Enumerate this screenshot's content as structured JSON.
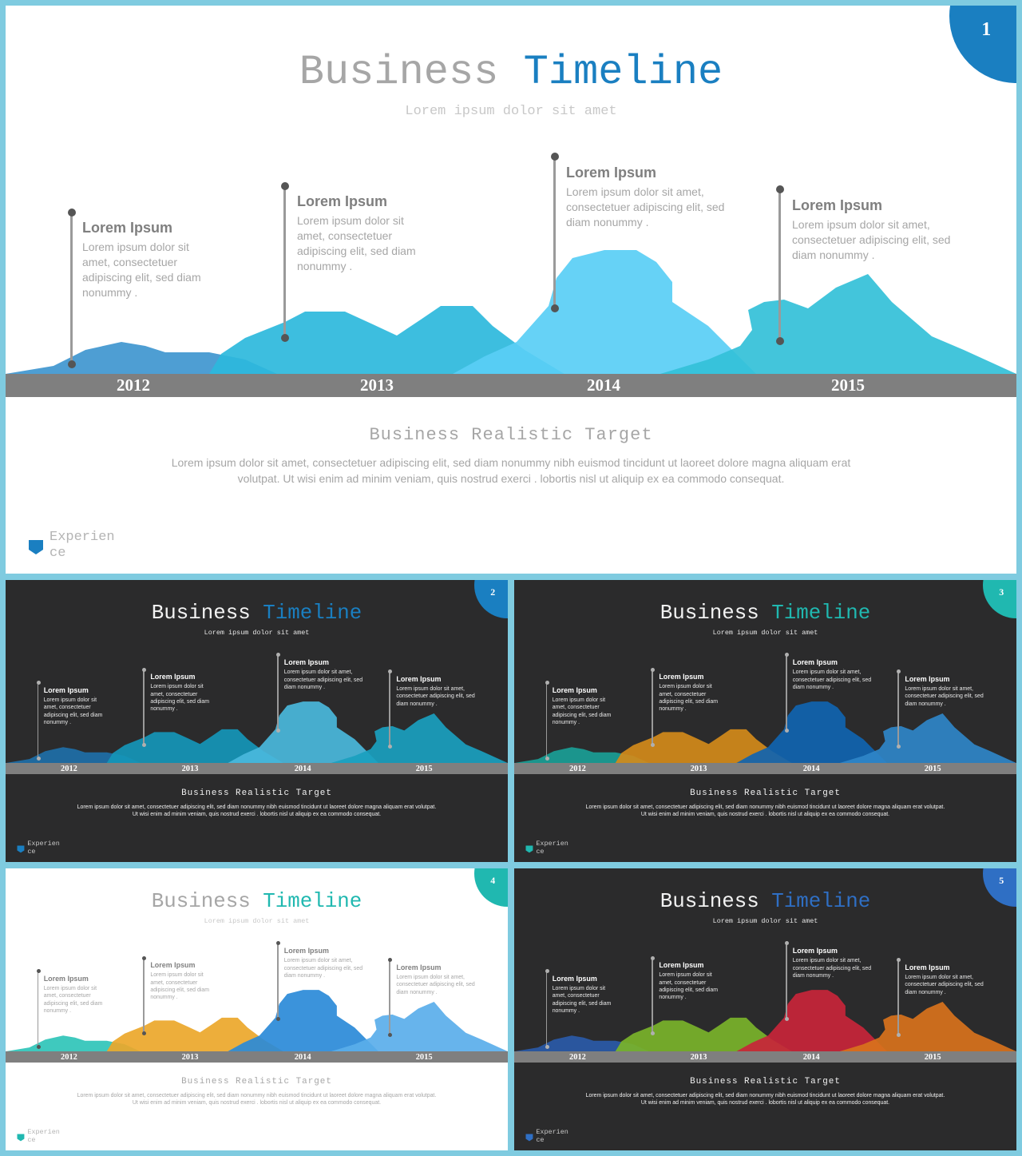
{
  "slides": [
    {
      "number": "1",
      "theme": "light",
      "accent": "#1a7fc1",
      "title_word1": "Business",
      "title_word2": "Timeline",
      "subtitle": "Lorem ipsum dolor sit amet",
      "colors": [
        "#3f96cf",
        "#2db8dc",
        "#59cef5",
        "#33c0d8"
      ],
      "years": [
        "2012",
        "2013",
        "2014",
        "2015"
      ],
      "callouts": [
        {
          "heading": "Lorem Ipsum",
          "body": "Lorem ipsum dolor sit amet, consectetuer adipiscing elit, sed diam nonummy ."
        },
        {
          "heading": "Lorem Ipsum",
          "body": "Lorem ipsum dolor sit amet, consectetuer adipiscing elit, sed diam nonummy ."
        },
        {
          "heading": "Lorem Ipsum",
          "body": "Lorem ipsum dolor sit amet, consectetuer adipiscing elit, sed diam nonummy ."
        },
        {
          "heading": "Lorem Ipsum",
          "body": "Lorem ipsum dolor sit amet, consectetuer adipiscing elit, sed diam nonummy ."
        }
      ],
      "bottom_title": "Business Realistic Target",
      "bottom_text": "Lorem ipsum dolor sit amet, consectetuer adipiscing elit, sed diam nonummy nibh euismod tincidunt ut laoreet dolore magna aliquam erat volutpat. Ut wisi enim ad minim veniam, quis nostrud exerci . lobortis nisl ut aliquip ex ea commodo consequat.",
      "logo_text": "Experience"
    },
    {
      "number": "2",
      "theme": "dark",
      "accent": "#1a7fc1",
      "title_word1": "Business",
      "title_word2": "Timeline",
      "subtitle": "Lorem ipsum dolor sit amet",
      "colors": [
        "#1e6fa8",
        "#1596b8",
        "#4ab8dc",
        "#1aa0bf"
      ],
      "years": [
        "2012",
        "2013",
        "2014",
        "2015"
      ],
      "callouts": [
        {
          "heading": "Lorem Ipsum",
          "body": "Lorem ipsum dolor sit amet, consectetuer adipiscing elit, sed diam nonummy ."
        },
        {
          "heading": "Lorem Ipsum",
          "body": "Lorem ipsum dolor sit amet, consectetuer adipiscing elit, sed diam nonummy ."
        },
        {
          "heading": "Lorem Ipsum",
          "body": "Lorem ipsum dolor sit amet, consectetuer adipiscing elit, sed diam nonummy ."
        },
        {
          "heading": "Lorem Ipsum",
          "body": "Lorem ipsum dolor sit amet, consectetuer adipiscing elit, sed diam nonummy ."
        }
      ],
      "bottom_title": "Business Realistic Target",
      "bottom_text": "Lorem ipsum dolor sit amet, consectetuer adipiscing elit, sed diam nonummy nibh euismod tincidunt ut laoreet dolore magna aliquam erat volutpat. Ut wisi enim ad minim veniam, quis nostrud exerci . lobortis nisl ut aliquip ex ea commodo consequat.",
      "logo_text": "Experience"
    },
    {
      "number": "3",
      "theme": "dark",
      "accent": "#20b8b0",
      "title_word1": "Business",
      "title_word2": "Timeline",
      "subtitle": "Lorem ipsum dolor sit amet",
      "colors": [
        "#1a9e96",
        "#d38a1a",
        "#1064b0",
        "#2f86c8"
      ],
      "years": [
        "2012",
        "2013",
        "2014",
        "2015"
      ],
      "callouts": [
        {
          "heading": "Lorem Ipsum",
          "body": "Lorem ipsum dolor sit amet, consectetuer adipiscing elit, sed diam nonummy ."
        },
        {
          "heading": "Lorem Ipsum",
          "body": "Lorem ipsum dolor sit amet, consectetuer adipiscing elit, sed diam nonummy ."
        },
        {
          "heading": "Lorem Ipsum",
          "body": "Lorem ipsum dolor sit amet, consectetuer adipiscing elit, sed diam nonummy ."
        },
        {
          "heading": "Lorem Ipsum",
          "body": "Lorem ipsum dolor sit amet, consectetuer adipiscing elit, sed diam nonummy ."
        }
      ],
      "bottom_title": "Business Realistic Target",
      "bottom_text": "Lorem ipsum dolor sit amet, consectetuer adipiscing elit, sed diam nonummy nibh euismod tincidunt ut laoreet dolore magna aliquam erat volutpat. Ut wisi enim ad minim veniam, quis nostrud exerci . lobortis nisl ut aliquip ex ea commodo consequat.",
      "logo_text": "Experience"
    },
    {
      "number": "4",
      "theme": "light",
      "accent": "#20b8b0",
      "title_word1": "Business",
      "title_word2": "Timeline",
      "subtitle": "Lorem ipsum dolor sit amet",
      "colors": [
        "#2fc4b8",
        "#eba72a",
        "#2a8ad8",
        "#5aaeea"
      ],
      "years": [
        "2012",
        "2013",
        "2014",
        "2015"
      ],
      "callouts": [
        {
          "heading": "Lorem Ipsum",
          "body": "Lorem ipsum dolor sit amet, consectetuer adipiscing elit, sed diam nonummy ."
        },
        {
          "heading": "Lorem Ipsum",
          "body": "Lorem ipsum dolor sit amet, consectetuer adipiscing elit, sed diam nonummy ."
        },
        {
          "heading": "Lorem Ipsum",
          "body": "Lorem ipsum dolor sit amet, consectetuer adipiscing elit, sed diam nonummy ."
        },
        {
          "heading": "Lorem Ipsum",
          "body": "Lorem ipsum dolor sit amet, consectetuer adipiscing elit, sed diam nonummy ."
        }
      ],
      "bottom_title": "Business Realistic Target",
      "bottom_text": "Lorem ipsum dolor sit amet, consectetuer adipiscing elit, sed diam nonummy nibh euismod tincidunt ut laoreet dolore magna aliquam erat volutpat. Ut wisi enim ad minim veniam, quis nostrud exerci . lobortis nisl ut aliquip ex ea commodo consequat.",
      "logo_text": "Experience"
    },
    {
      "number": "5",
      "theme": "dark",
      "accent": "#2f6fc4",
      "title_word1": "Business",
      "title_word2": "Timeline",
      "subtitle": "Lorem ipsum dolor sit amet",
      "colors": [
        "#2a5aa8",
        "#7ab32a",
        "#c8253a",
        "#d8721c"
      ],
      "years": [
        "2012",
        "2013",
        "2014",
        "2015"
      ],
      "callouts": [
        {
          "heading": "Lorem Ipsum",
          "body": "Lorem ipsum dolor sit amet, consectetuer adipiscing elit, sed diam nonummy ."
        },
        {
          "heading": "Lorem Ipsum",
          "body": "Lorem ipsum dolor sit amet, consectetuer adipiscing elit, sed diam nonummy ."
        },
        {
          "heading": "Lorem Ipsum",
          "body": "Lorem ipsum dolor sit amet, consectetuer adipiscing elit, sed diam nonummy ."
        },
        {
          "heading": "Lorem Ipsum",
          "body": "Lorem ipsum dolor sit amet, consectetuer adipiscing elit, sed diam nonummy ."
        }
      ],
      "bottom_title": "Business Realistic Target",
      "bottom_text": "Lorem ipsum dolor sit amet, consectetuer adipiscing elit, sed diam nonummy nibh euismod tincidunt ut laoreet dolore magna aliquam erat volutpat. Ut wisi enim ad minim veniam, quis nostrud exerci . lobortis nisl ut aliquip ex ea commodo consequat.",
      "logo_text": "Experience"
    }
  ]
}
